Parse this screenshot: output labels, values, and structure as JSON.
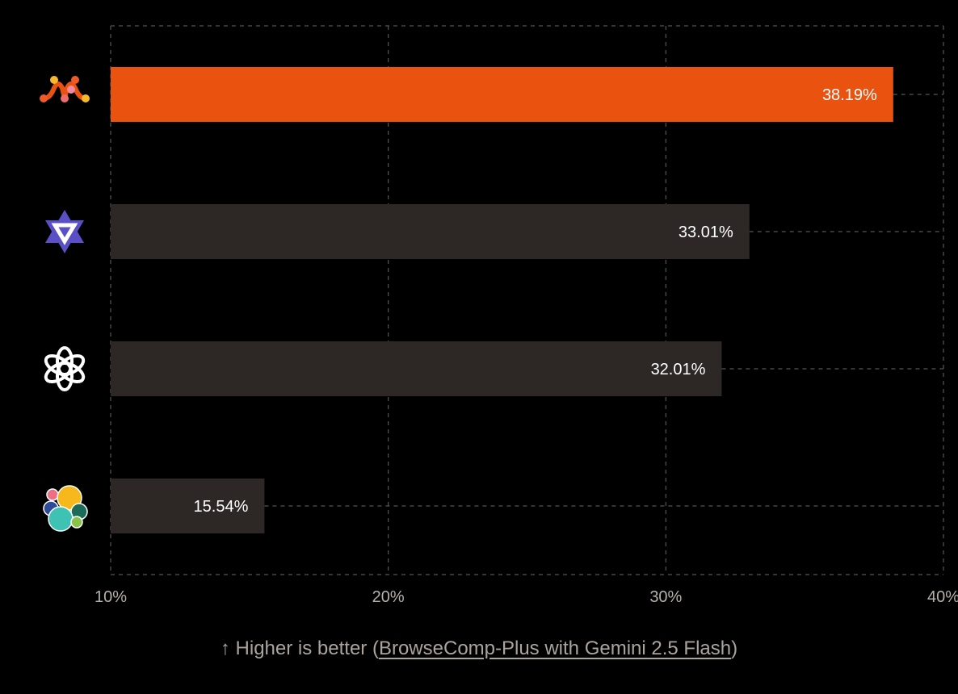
{
  "chart_data": {
    "type": "bar",
    "orientation": "horizontal",
    "categories": [
      "mixedbread-logo",
      "qwen-logo",
      "openai-logo",
      "elasticsearch-logo"
    ],
    "values": [
      38.19,
      33.01,
      32.01,
      15.54
    ],
    "data_labels": [
      "38.19%",
      "33.01%",
      "32.01%",
      "15.54%"
    ],
    "xlim": [
      10,
      40
    ],
    "xticks": [
      10,
      20,
      30,
      40
    ],
    "xtick_labels": [
      "10%",
      "20%",
      "30%",
      "40%"
    ],
    "grid": true,
    "colors": {
      "highlight": "#ea520f",
      "default": "#2d2826",
      "grid": "#555",
      "background": "#000000"
    }
  },
  "caption": {
    "prefix": "↑ Higher is better (",
    "link": "BrowseComp-Plus with Gemini 2.5 Flash",
    "suffix": ")"
  }
}
